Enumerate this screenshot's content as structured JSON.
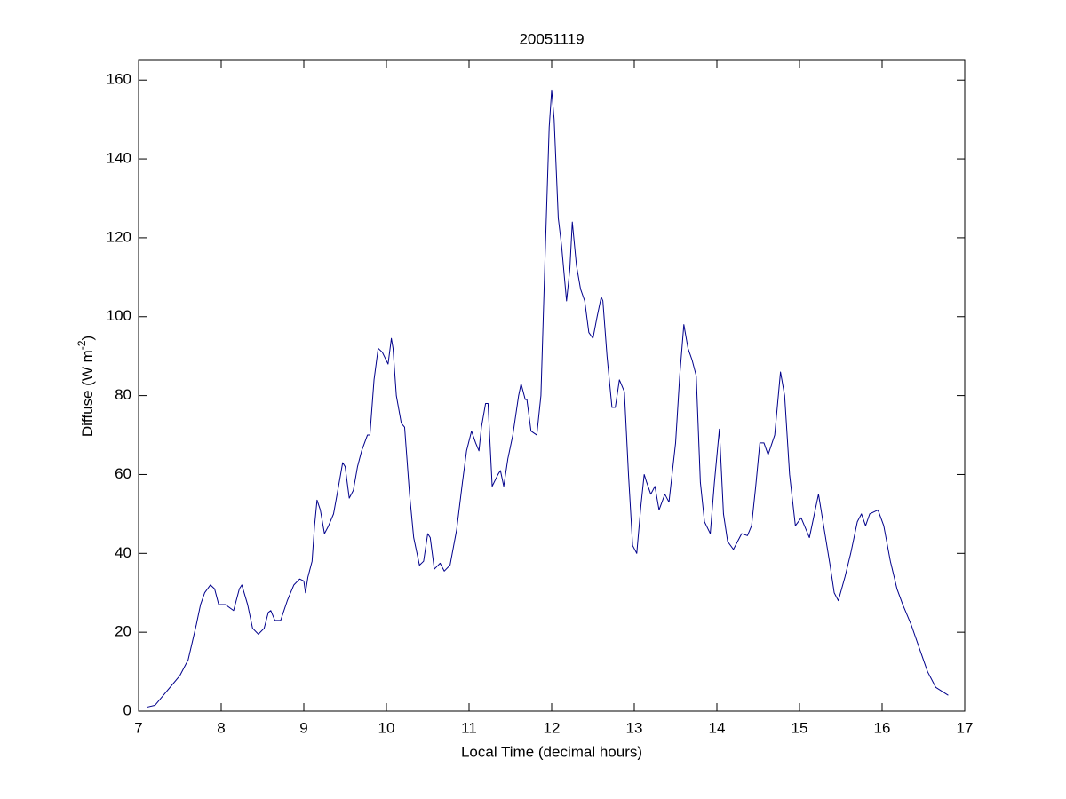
{
  "chart_data": {
    "type": "line",
    "title": "20051119",
    "xlabel": "Local Time (decimal hours)",
    "ylabel": {
      "text": "Diffuse (W m",
      "superscript": "-2",
      "suffix": ")"
    },
    "xlim": [
      7,
      17
    ],
    "xticks": [
      7,
      8,
      9,
      10,
      11,
      12,
      13,
      14,
      15,
      16,
      17
    ],
    "ylim": [
      0,
      165
    ],
    "yticks": [
      0,
      20,
      40,
      60,
      80,
      100,
      120,
      140,
      160
    ],
    "grid": false,
    "series": [
      {
        "name": "Diffuse",
        "color": "#00008b",
        "x": [
          7.1,
          7.2,
          7.3,
          7.4,
          7.5,
          7.6,
          7.7,
          7.75,
          7.8,
          7.87,
          7.92,
          7.97,
          8.05,
          8.15,
          8.22,
          8.25,
          8.32,
          8.38,
          8.45,
          8.52,
          8.57,
          8.6,
          8.65,
          8.72,
          8.8,
          8.88,
          8.95,
          9.0,
          9.02,
          9.05,
          9.1,
          9.13,
          9.16,
          9.2,
          9.25,
          9.3,
          9.36,
          9.42,
          9.47,
          9.5,
          9.55,
          9.6,
          9.65,
          9.7,
          9.77,
          9.8,
          9.85,
          9.9,
          9.95,
          10.02,
          10.06,
          10.08,
          10.12,
          10.18,
          10.22,
          10.28,
          10.33,
          10.4,
          10.45,
          10.5,
          10.53,
          10.58,
          10.65,
          10.7,
          10.77,
          10.85,
          10.92,
          10.97,
          11.03,
          11.08,
          11.12,
          11.15,
          11.2,
          11.23,
          11.28,
          11.35,
          11.38,
          11.42,
          11.47,
          11.53,
          11.6,
          11.63,
          11.68,
          11.7,
          11.75,
          11.82,
          11.87,
          11.92,
          11.97,
          12.0,
          12.03,
          12.08,
          12.12,
          12.18,
          12.22,
          12.25,
          12.3,
          12.35,
          12.4,
          12.45,
          12.5,
          12.55,
          12.6,
          12.62,
          12.67,
          12.73,
          12.77,
          12.82,
          12.88,
          12.93,
          12.98,
          13.03,
          13.08,
          13.12,
          13.15,
          13.2,
          13.25,
          13.3,
          13.37,
          13.42,
          13.5,
          13.55,
          13.6,
          13.65,
          13.7,
          13.75,
          13.8,
          13.85,
          13.92,
          13.97,
          14.03,
          14.08,
          14.13,
          14.2,
          14.25,
          14.3,
          14.37,
          14.42,
          14.47,
          14.52,
          14.57,
          14.62,
          14.7,
          14.77,
          14.82,
          14.88,
          14.95,
          15.02,
          15.08,
          15.12,
          15.18,
          15.23,
          15.3,
          15.37,
          15.42,
          15.47,
          15.55,
          15.62,
          15.7,
          15.75,
          15.8,
          15.85,
          15.9,
          15.95,
          16.02,
          16.1,
          16.18,
          16.25,
          16.35,
          16.45,
          16.55,
          16.65,
          16.8
        ],
        "values": [
          1,
          1.5,
          4,
          6.5,
          9,
          13,
          22,
          27,
          30,
          32,
          31,
          27,
          27,
          25.5,
          31,
          32,
          27,
          21,
          19.5,
          21,
          25,
          25.5,
          23,
          23,
          28,
          32,
          33.5,
          33,
          30,
          34,
          38,
          47,
          53.5,
          51,
          45,
          47,
          50,
          57,
          63,
          62,
          54,
          56,
          62,
          66,
          70,
          70,
          84,
          92,
          91,
          88,
          94.5,
          92,
          80,
          73,
          72,
          55,
          44,
          37,
          38,
          45,
          44,
          36,
          37.5,
          35.5,
          37,
          46,
          58,
          66,
          71,
          68,
          66,
          72,
          78,
          78,
          57,
          60,
          61,
          57,
          64,
          70,
          80,
          83,
          79,
          79,
          71,
          70,
          80,
          115,
          148,
          157.5,
          150,
          125,
          118,
          104,
          112,
          124,
          113,
          107,
          104,
          96,
          94.5,
          100,
          105,
          104,
          90,
          77,
          77,
          84,
          81,
          60,
          42,
          40,
          52,
          60,
          58,
          55,
          57,
          51,
          55,
          53,
          68,
          85,
          98,
          92,
          89,
          85,
          58,
          48,
          45,
          58,
          71.5,
          50,
          43,
          41,
          43,
          45,
          44.5,
          47,
          57,
          68,
          68,
          65,
          70,
          86,
          80,
          60,
          47,
          49,
          46,
          44,
          50,
          55,
          46,
          37,
          30,
          28,
          34,
          40,
          48,
          50,
          47,
          50,
          50.5,
          51,
          47,
          38,
          31,
          27,
          22,
          16,
          10,
          6,
          4
        ]
      }
    ]
  }
}
